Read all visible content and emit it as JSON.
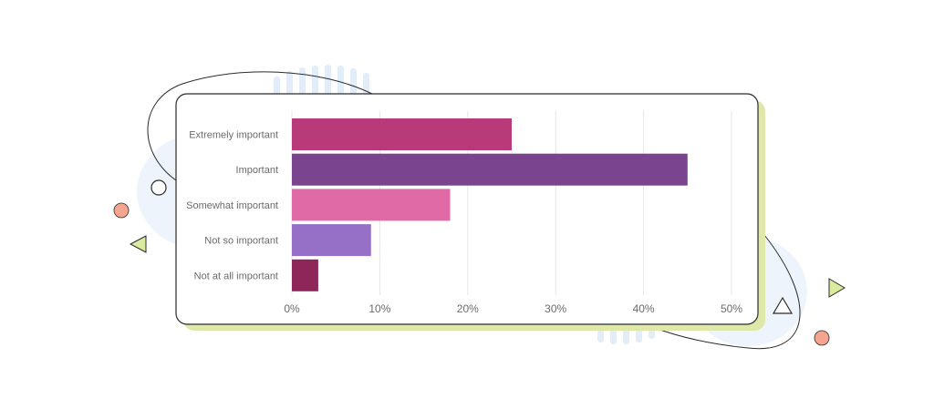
{
  "chart_data": {
    "type": "bar",
    "orientation": "horizontal",
    "categories": [
      "Extremely important",
      "Important",
      "Somewhat important",
      "Not so important",
      "Not at all important"
    ],
    "values": [
      25,
      45,
      18,
      9,
      3
    ],
    "colors": [
      "#b93a78",
      "#7a448f",
      "#df6aa5",
      "#9570c6",
      "#8e2659"
    ],
    "xlim": [
      0,
      50
    ],
    "xticks": [
      0,
      10,
      20,
      30,
      40,
      50
    ],
    "xtick_labels": [
      "0%",
      "10%",
      "20%",
      "30%",
      "40%",
      "50%"
    ],
    "grid": "vertical",
    "legend": "none"
  },
  "decor": {
    "card_shadow_color": "#dfe8a8",
    "circle_accent_color": "#f4a48f",
    "triangle_accent_color": "#d9eb9e",
    "backdrop_color": "#eef4fb"
  }
}
